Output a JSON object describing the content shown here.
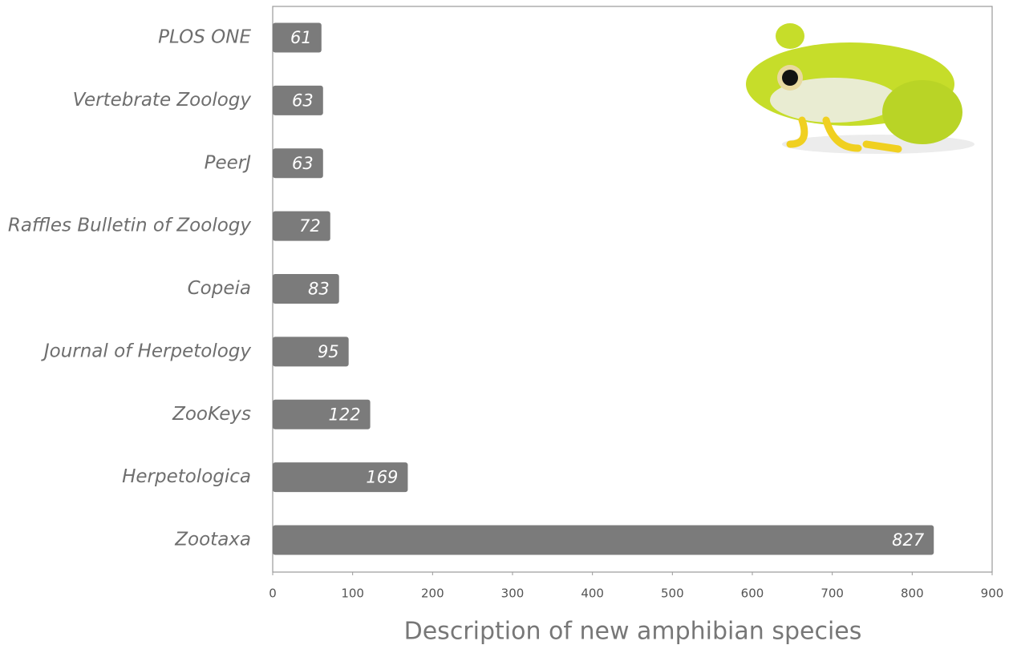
{
  "chart_data": {
    "type": "barh",
    "x_label": "Description of new amphibian species",
    "categories": [
      "PLOS ONE",
      "Vertebrate Zoology",
      "PeerJ",
      "Raffles Bulletin of Zoology",
      "Copeia",
      "Journal of Herpetology",
      "ZooKeys",
      "Herpetologica",
      "Zootaxa"
    ],
    "values": [
      61,
      63,
      63,
      72,
      83,
      95,
      122,
      169,
      827
    ],
    "color": "#7b7b7b",
    "xlim": [
      0,
      900
    ],
    "xticks": [
      0,
      100,
      200,
      300,
      400,
      500,
      600,
      700,
      800,
      900
    ],
    "grid": false
  }
}
